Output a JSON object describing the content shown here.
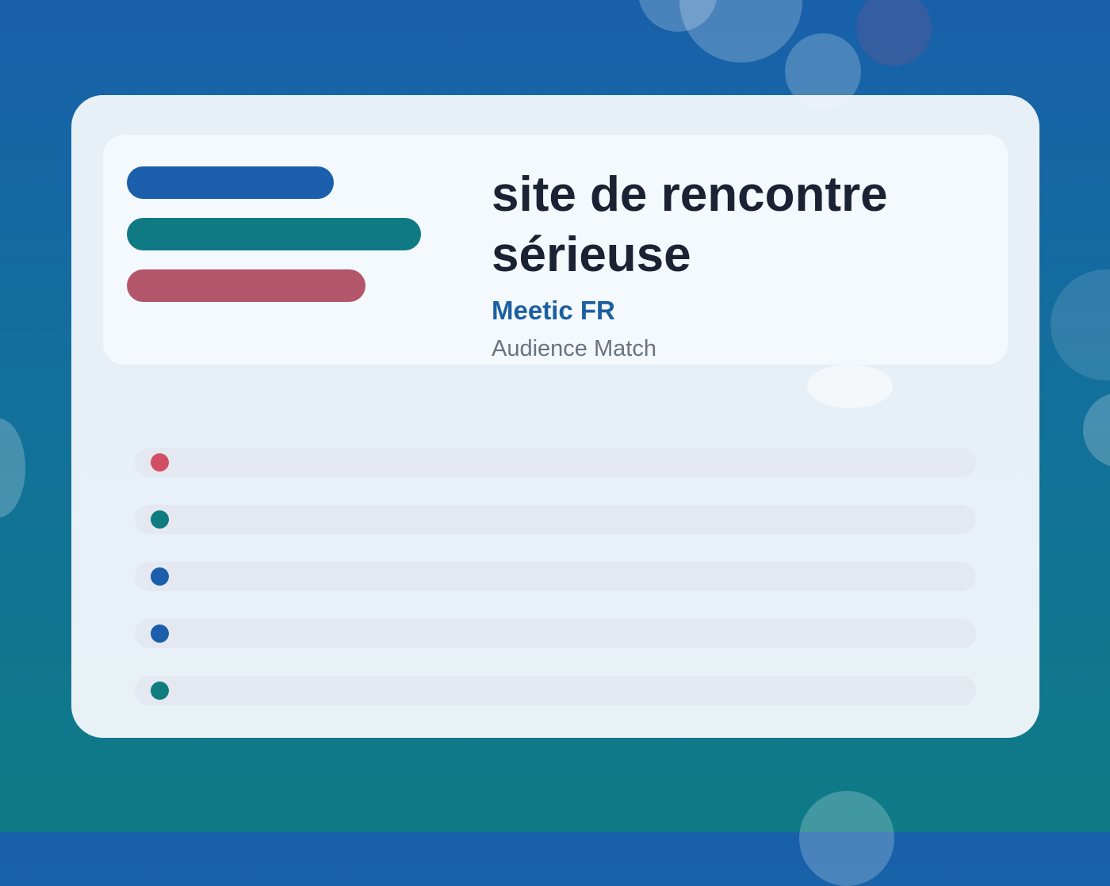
{
  "title": "site de rencontre sérieuse",
  "brand": "Meetic FR",
  "tagline": "Audience Match",
  "colors": {
    "blue": "#1b5fac",
    "teal": "#0f7a84",
    "rose": "#b3566b",
    "brand_text": "#1b5fa0",
    "dot_red": "#d24f63",
    "dot_teal": "#0f7c80",
    "dot_blue": "#1b5fac"
  },
  "accent_bars": [
    {
      "color": "#1b5fac"
    },
    {
      "color": "#0f7a84"
    },
    {
      "color": "#b3566b"
    }
  ],
  "list_rows": [
    {
      "dot_color": "#d24f63"
    },
    {
      "dot_color": "#0f7c80"
    },
    {
      "dot_color": "#1b5fac"
    },
    {
      "dot_color": "#1b5fac"
    },
    {
      "dot_color": "#0f7c80"
    }
  ]
}
